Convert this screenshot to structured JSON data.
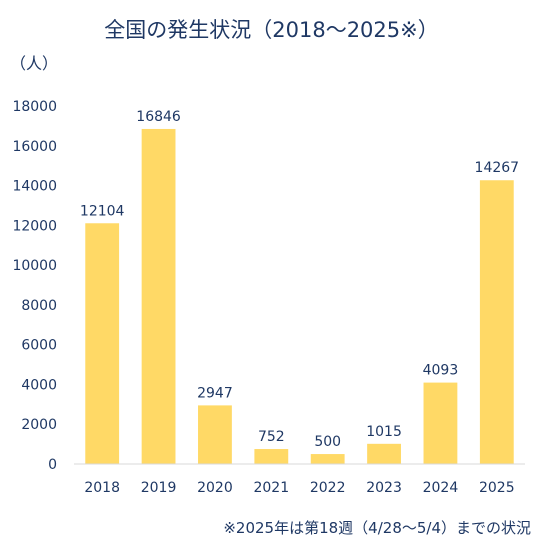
{
  "chart_data": {
    "type": "bar",
    "title": "全国の発生状況（2018～2025※）",
    "unit_label": "（人）",
    "note": "※2025年は第18週（4/28～5/4）までの状況",
    "categories": [
      "2018",
      "2019",
      "2020",
      "2021",
      "2022",
      "2023",
      "2024",
      "2025"
    ],
    "values": [
      12104,
      16846,
      2947,
      752,
      500,
      1015,
      4093,
      14267
    ],
    "ylim": [
      0,
      18000
    ],
    "yticks": [
      0,
      2000,
      4000,
      6000,
      8000,
      10000,
      12000,
      14000,
      16000,
      18000
    ],
    "grid": false,
    "legend": "none",
    "bar_color": "#ffd966",
    "text_color": "#1f3864"
  }
}
